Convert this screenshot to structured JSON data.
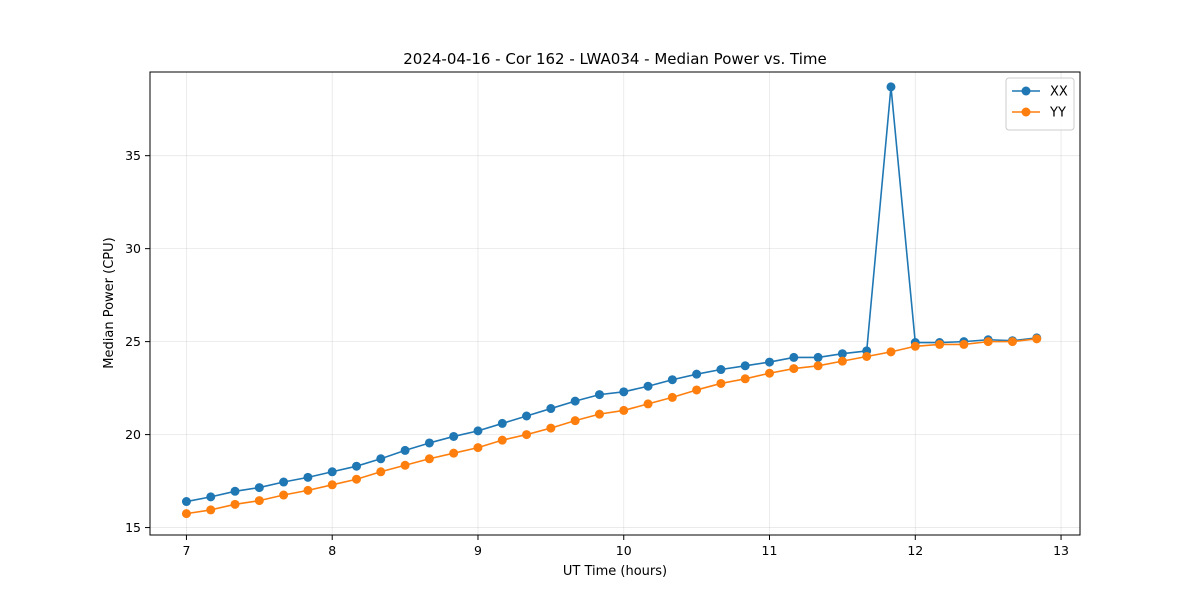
{
  "chart_data": {
    "type": "line",
    "title": "2024-04-16 - Cor 162 - LWA034 - Median Power vs. Time",
    "xlabel": "UT Time (hours)",
    "ylabel": "Median Power (CPU)",
    "xlim": [
      6.75,
      13.13
    ],
    "ylim": [
      14.6,
      39.5
    ],
    "xticks": [
      7,
      8,
      9,
      10,
      11,
      12,
      13
    ],
    "yticks": [
      15,
      20,
      25,
      30,
      35
    ],
    "grid": true,
    "legend_position": "top-right",
    "x": [
      7.0,
      7.1667,
      7.3333,
      7.5,
      7.6667,
      7.8333,
      8.0,
      8.1667,
      8.3333,
      8.5,
      8.6667,
      8.8333,
      9.0,
      9.1667,
      9.3333,
      9.5,
      9.6667,
      9.8333,
      10.0,
      10.1667,
      10.3333,
      10.5,
      10.6667,
      10.8333,
      11.0,
      11.1667,
      11.3333,
      11.5,
      11.6667,
      11.8333,
      12.0,
      12.1667,
      12.3333,
      12.5,
      12.6667,
      12.8333
    ],
    "series": [
      {
        "name": "XX",
        "color": "#1f77b4",
        "values": [
          16.4,
          16.65,
          16.95,
          17.15,
          17.45,
          17.7,
          18.0,
          18.3,
          18.7,
          19.15,
          19.55,
          19.9,
          20.2,
          20.6,
          21.0,
          21.4,
          21.8,
          22.15,
          22.3,
          22.6,
          22.95,
          23.25,
          23.5,
          23.7,
          23.9,
          24.15,
          24.15,
          24.35,
          24.5,
          38.7,
          24.95,
          24.95,
          25.0,
          25.1,
          25.05,
          25.2
        ]
      },
      {
        "name": "YY",
        "color": "#ff7f0e",
        "values": [
          15.75,
          15.95,
          16.25,
          16.45,
          16.75,
          17.0,
          17.3,
          17.6,
          18.0,
          18.35,
          18.7,
          19.0,
          19.3,
          19.7,
          20.0,
          20.35,
          20.75,
          21.1,
          21.3,
          21.65,
          22.0,
          22.4,
          22.75,
          23.0,
          23.3,
          23.55,
          23.7,
          23.95,
          24.2,
          24.45,
          24.75,
          24.85,
          24.85,
          25.0,
          25.0,
          25.15
        ]
      }
    ]
  }
}
